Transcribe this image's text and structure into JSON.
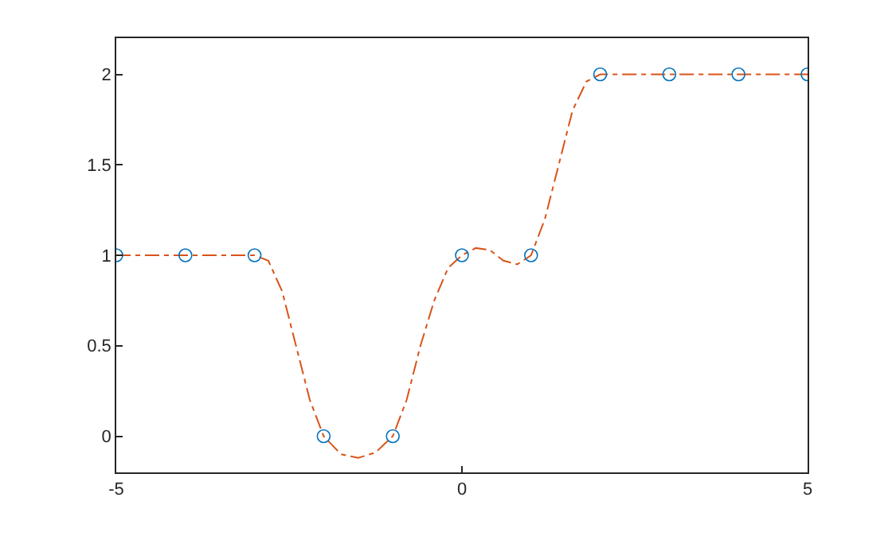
{
  "chart_data": {
    "type": "scatter",
    "x": [
      -5,
      -4,
      -3,
      -2,
      -1,
      0,
      1,
      2,
      3,
      4,
      5
    ],
    "series": [
      {
        "color": "#0072bd",
        "marker": "circle",
        "values": [
          1,
          1,
          1,
          0,
          0,
          1,
          1,
          2,
          2,
          2,
          2
        ]
      },
      {
        "type": "line",
        "color": "#d95319",
        "marker": "none",
        "line_style": "dashdot",
        "x": [
          -5,
          -4,
          -3,
          -2.8,
          -2.6,
          -2.4,
          -2.2,
          -2,
          -1.75,
          -1.5,
          -1.25,
          -1,
          -0.8,
          -0.6,
          -0.4,
          -0.2,
          0,
          0.2,
          0.4,
          0.6,
          0.8,
          1,
          1.2,
          1.4,
          1.6,
          1.8,
          2,
          3,
          4,
          5
        ],
        "values": [
          1,
          1,
          1,
          0.97,
          0.8,
          0.5,
          0.2,
          0,
          -0.1,
          -0.12,
          -0.09,
          0,
          0.2,
          0.5,
          0.75,
          0.93,
          1,
          1.04,
          1.03,
          0.97,
          0.95,
          1,
          1.2,
          1.5,
          1.8,
          1.96,
          2,
          2,
          2,
          2
        ]
      }
    ],
    "xlim": [
      -5,
      5
    ],
    "xticks": [
      -5,
      0,
      5
    ],
    "ylim": [
      -0.2,
      2.2
    ],
    "yticks": [
      0,
      0.5,
      1,
      1.5,
      2
    ],
    "grid": false
  }
}
